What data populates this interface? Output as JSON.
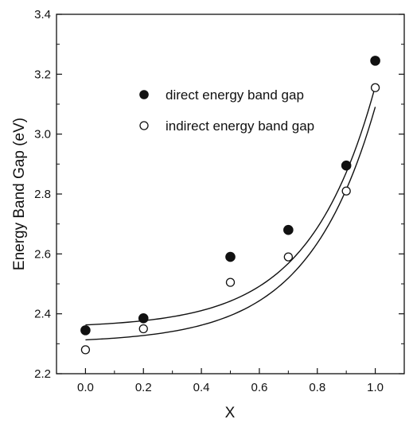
{
  "chart_data": {
    "type": "scatter",
    "title": "",
    "xlabel": "X",
    "ylabel": "Energy Band Gap (eV)",
    "xlim": [
      -0.1,
      1.1
    ],
    "ylim": [
      2.2,
      3.4
    ],
    "xticks": [
      "0.0",
      "0.2",
      "0.4",
      "0.6",
      "0.8",
      "1.0"
    ],
    "yticks": [
      "2.2",
      "2.4",
      "2.6",
      "2.8",
      "3.0",
      "3.2",
      "3.4"
    ],
    "grid": false,
    "legend_position": "upper-left",
    "series": [
      {
        "name": "direct energy band gap",
        "marker": "filled-circle",
        "x": [
          0.0,
          0.2,
          0.5,
          0.7,
          0.9,
          1.0
        ],
        "y": [
          2.345,
          2.385,
          2.59,
          2.68,
          2.895,
          3.245
        ]
      },
      {
        "name": "indirect energy band gap",
        "marker": "open-circle",
        "x": [
          0.0,
          0.2,
          0.5,
          0.7,
          0.9,
          1.0
        ],
        "y": [
          2.28,
          2.35,
          2.505,
          2.59,
          2.81,
          3.155
        ]
      }
    ],
    "fit_curves": [
      {
        "series": "direct energy band gap",
        "y0": 2.363,
        "a": 0.0099,
        "b": 4.4
      },
      {
        "series": "indirect energy band gap",
        "y0": 2.313,
        "a": 0.0107,
        "b": 4.3
      }
    ]
  }
}
